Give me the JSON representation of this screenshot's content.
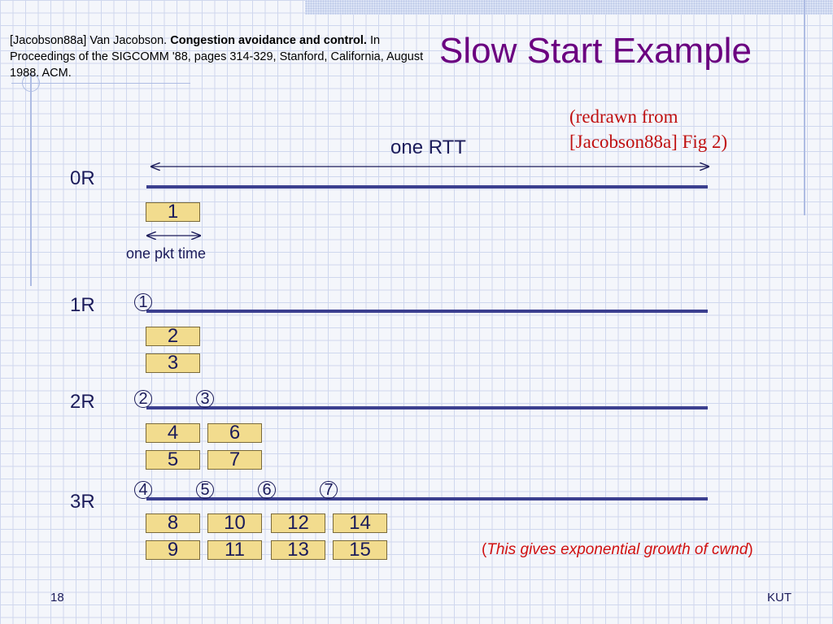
{
  "slide": {
    "title": "Slow Start Example",
    "reference": {
      "prefix": "[Jacobson88a] Van Jacobson. ",
      "bold": "Congestion avoidance and control.",
      "rest": " In Proceedings of the SIGCOMM '88, pages 314-329, Stanford, California, August 1988. ACM."
    },
    "redrawn": "(redrawn from\n[Jacobson88a] Fig 2)",
    "rtt_label": "one RTT",
    "pkt_time_label": "one pkt time",
    "note": {
      "open": "(",
      "text": "This gives exponential growth of cwnd",
      "close": ")"
    },
    "page_number": "18",
    "org": "KUT"
  },
  "rows": [
    {
      "label": "0R",
      "acks": [],
      "packets": [
        [
          "1"
        ]
      ]
    },
    {
      "label": "1R",
      "acks": [
        "1"
      ],
      "packets": [
        [
          "2",
          "3"
        ]
      ]
    },
    {
      "label": "2R",
      "acks": [
        "2",
        "3"
      ],
      "packets": [
        [
          "4",
          "5"
        ],
        [
          "6",
          "7"
        ]
      ]
    },
    {
      "label": "3R",
      "acks": [
        "4",
        "5",
        "6",
        "7"
      ],
      "packets": [
        [
          "8",
          "9"
        ],
        [
          "10",
          "11"
        ],
        [
          "12",
          "13"
        ],
        [
          "14",
          "15"
        ]
      ]
    }
  ],
  "colors": {
    "title": "#6b0080",
    "timeline": "#3b3f8f",
    "packet_fill": "#f2dc8e",
    "note": "#d01010",
    "redrawn": "#c01010"
  }
}
